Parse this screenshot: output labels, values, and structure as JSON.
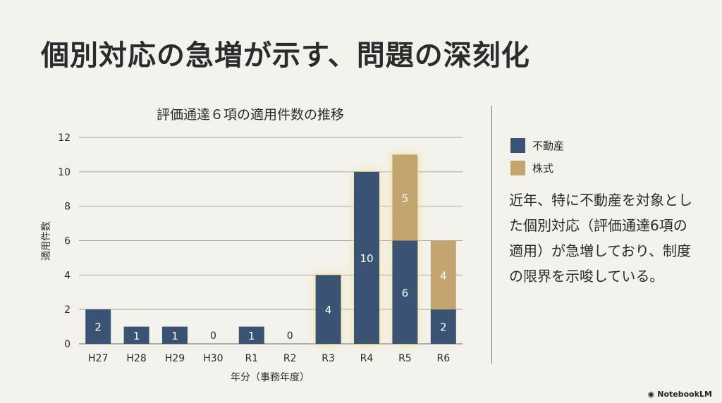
{
  "title": "個別対応の急増が示す、問題の深刻化",
  "chart_data": {
    "type": "bar",
    "stacked": true,
    "title": "評価通達６項の適用件数の推移",
    "xlabel": "年分（事務年度）",
    "ylabel": "適用件数",
    "ylim": [
      0,
      12
    ],
    "yticks": [
      0,
      2,
      4,
      6,
      8,
      10,
      12
    ],
    "grid": true,
    "categories": [
      "H27",
      "H28",
      "H29",
      "H30",
      "R1",
      "R2",
      "R3",
      "R4",
      "R5",
      "R6"
    ],
    "series": [
      {
        "name": "不動産",
        "color": "#3a5373",
        "values": [
          2,
          1,
          1,
          0,
          1,
          0,
          4,
          10,
          6,
          2
        ]
      },
      {
        "name": "株式",
        "color": "#c2a56f",
        "values": [
          0,
          0,
          0,
          0,
          0,
          0,
          0,
          0,
          5,
          4
        ]
      }
    ],
    "highlighted": [
      "R3",
      "R4",
      "R5"
    ],
    "legend_position": "right"
  },
  "legend": [
    {
      "label": "不動産",
      "color": "#3a5373"
    },
    {
      "label": "株式",
      "color": "#c2a56f"
    }
  ],
  "paragraph": "近年、特に不動産を対象とした個別対応（評価通達6項の適用）が急増しており、制度の限界を示唆している。",
  "brand": "NotebookLM"
}
